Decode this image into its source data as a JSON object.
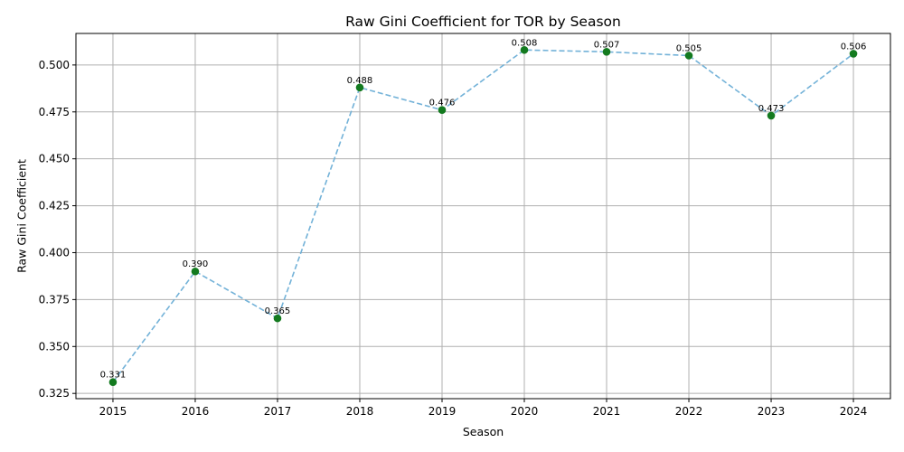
{
  "chart_data": {
    "type": "line",
    "title": "Raw Gini Coefficient for TOR by Season",
    "xlabel": "Season",
    "ylabel": "Raw Gini Coefficient",
    "x": [
      2015,
      2016,
      2017,
      2018,
      2019,
      2020,
      2021,
      2022,
      2023,
      2024
    ],
    "series": [
      {
        "values": [
          0.331,
          0.39,
          0.365,
          0.488,
          0.476,
          0.508,
          0.507,
          0.505,
          0.473,
          0.506
        ],
        "labels": [
          "0.331",
          "0.390",
          "0.365",
          "0.488",
          "0.476",
          "0.508",
          "0.507",
          "0.505",
          "0.473",
          "0.506"
        ],
        "line_color": "#6baed6",
        "line_style": "dashed",
        "marker_color": "#137a1f"
      }
    ],
    "yticks": [
      0.325,
      0.35,
      0.375,
      0.4,
      0.425,
      0.45,
      0.475,
      0.5
    ],
    "ytick_labels": [
      "0.325",
      "0.350",
      "0.375",
      "0.400",
      "0.425",
      "0.450",
      "0.475",
      "0.500"
    ],
    "xtick_labels": [
      "2015",
      "2016",
      "2017",
      "2018",
      "2019",
      "2020",
      "2021",
      "2022",
      "2023",
      "2024"
    ],
    "xlim": [
      2014.55,
      2024.45
    ],
    "ylim": [
      0.3222,
      0.5168
    ],
    "grid": true
  }
}
